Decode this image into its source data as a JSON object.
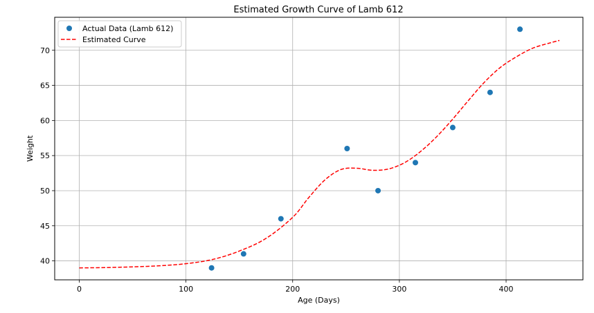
{
  "chart_data": {
    "type": "line",
    "title": "Estimated Growth Curve of Lamb 612",
    "xlabel": "Age (Days)",
    "ylabel": "Weight",
    "xlim": [
      -23,
      472
    ],
    "ylim": [
      37.3,
      74.7
    ],
    "x_ticks": [
      0,
      100,
      200,
      300,
      400
    ],
    "y_ticks": [
      40,
      45,
      50,
      55,
      60,
      65,
      70
    ],
    "grid": true,
    "legend_position": "upper-left",
    "series": [
      {
        "name": "Actual Data (Lamb 612)",
        "kind": "scatter",
        "color": "#1f77b4",
        "x": [
          124,
          154,
          189,
          251,
          280,
          315,
          350,
          385,
          413
        ],
        "y": [
          39,
          41,
          46,
          56,
          50,
          54,
          59,
          64,
          73
        ]
      },
      {
        "name": "Estimated Curve",
        "kind": "line",
        "style": "dashed",
        "color": "#ff0000",
        "x": [
          0,
          25,
          50,
          75,
          100,
          125,
          150,
          175,
          200,
          215,
          230,
          245,
          260,
          275,
          290,
          305,
          320,
          335,
          350,
          365,
          380,
          395,
          410,
          425,
          440,
          450
        ],
        "y": [
          39.0,
          39.05,
          39.15,
          39.3,
          39.6,
          40.2,
          41.4,
          43.2,
          46.2,
          49.0,
          51.5,
          53.0,
          53.2,
          52.9,
          53.1,
          54.0,
          55.6,
          57.7,
          60.2,
          62.9,
          65.5,
          67.6,
          69.1,
          70.3,
          71.0,
          71.4
        ]
      }
    ]
  }
}
